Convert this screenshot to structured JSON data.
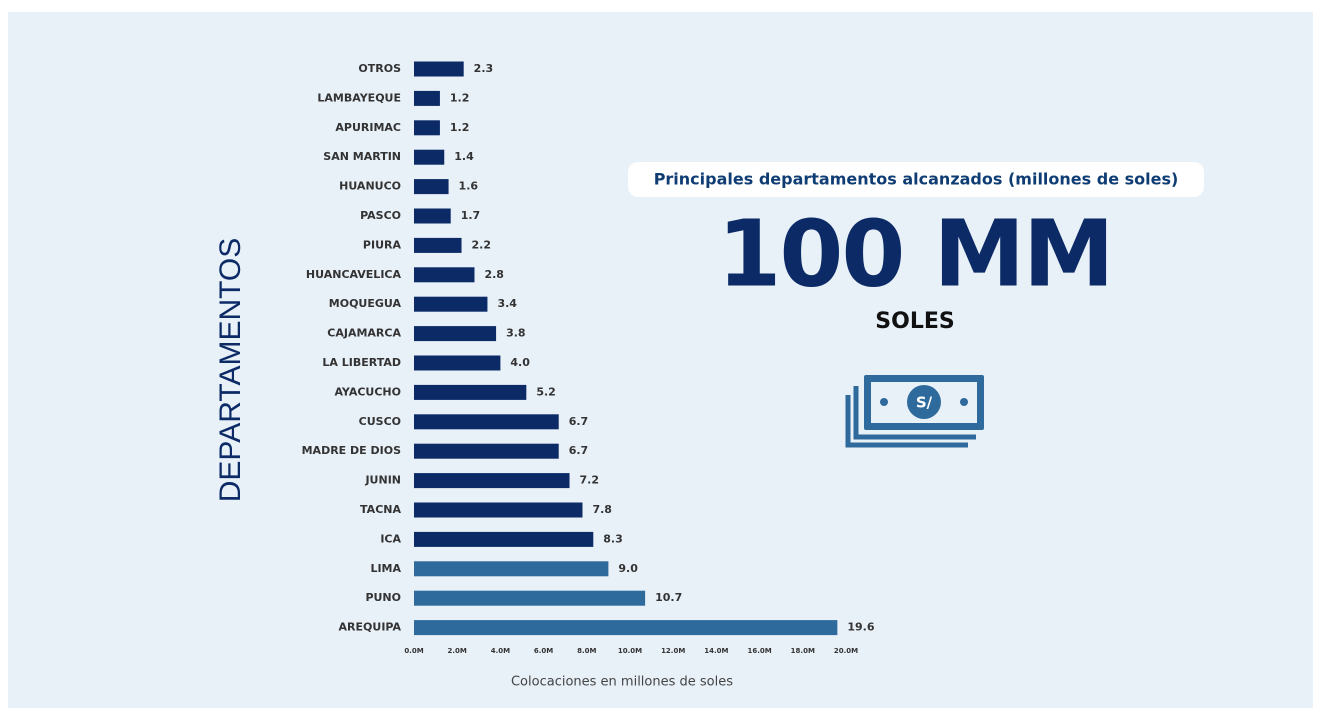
{
  "chart_data": {
    "type": "hbar",
    "title": "Principales departamentos alcanzados (millones de soles)",
    "headline": "100 MM",
    "headline_unit": "SOLES",
    "ylabel": "DEPARTAMENTOS",
    "xlabel": "Colocaciones en millones de soles",
    "categories": [
      "OTROS",
      "LAMBAYEQUE",
      "APURIMAC",
      "SAN MARTIN",
      "HUANUCO",
      "PASCO",
      "PIURA",
      "HUANCAVELICA",
      "MOQUEGUA",
      "CAJAMARCA",
      "LA LIBERTAD",
      "AYACUCHO",
      "CUSCO",
      "MADRE DE DIOS",
      "JUNIN",
      "TACNA",
      "ICA",
      "LIMA",
      "PUNO",
      "AREQUIPA"
    ],
    "values": [
      2.3,
      1.2,
      1.2,
      1.4,
      1.6,
      1.7,
      2.2,
      2.8,
      3.4,
      3.8,
      4.0,
      5.2,
      6.7,
      6.7,
      7.2,
      7.8,
      8.3,
      9.0,
      10.7,
      19.6
    ],
    "value_labels": [
      "2.3",
      "1.2",
      "1.2",
      "1.4",
      "1.6",
      "1.7",
      "2.2",
      "2.8",
      "3.4",
      "3.8",
      "4.0",
      "5.2",
      "6.7",
      "6.7",
      "7.2",
      "7.8",
      "8.3",
      "9.0",
      "10.7",
      "19.6"
    ],
    "colors": [
      "#0b2a66",
      "#0b2a66",
      "#0b2a66",
      "#0b2a66",
      "#0b2a66",
      "#0b2a66",
      "#0b2a66",
      "#0b2a66",
      "#0b2a66",
      "#0b2a66",
      "#0b2a66",
      "#0b2a66",
      "#0b2a66",
      "#0b2a66",
      "#0b2a66",
      "#0b2a66",
      "#0b2a66",
      "#2f6a9c",
      "#2f6a9c",
      "#2f6a9c"
    ],
    "xlim": [
      0,
      20
    ],
    "xticks": [
      {
        "value": 0,
        "label": "0.0M"
      },
      {
        "value": 2,
        "label": "2.0M"
      },
      {
        "value": 4,
        "label": "4.0M"
      },
      {
        "value": 6,
        "label": "6.0M"
      },
      {
        "value": 8,
        "label": "8.0M"
      },
      {
        "value": 10,
        "label": "10.0M"
      },
      {
        "value": 12,
        "label": "12.0M"
      },
      {
        "value": 14,
        "label": "14.0M"
      },
      {
        "value": 16,
        "label": "16.0M"
      },
      {
        "value": 18,
        "label": "18.0M"
      },
      {
        "value": 20,
        "label": "20.0M"
      }
    ]
  }
}
